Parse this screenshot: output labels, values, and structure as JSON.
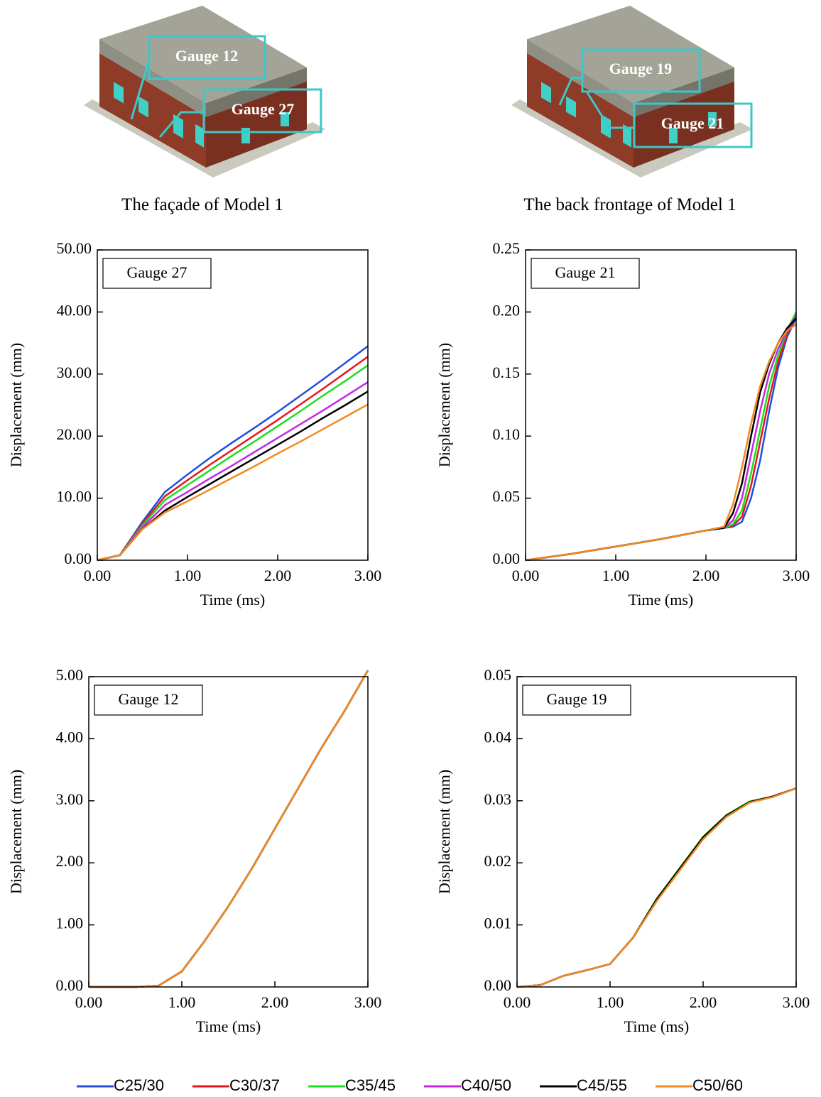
{
  "models": [
    {
      "caption": "The façade of Model 1",
      "gauges": [
        "Gauge 12",
        "Gauge 27"
      ]
    },
    {
      "caption": "The back frontage of Model 1",
      "gauges": [
        "Gauge 19",
        "Gauge 21"
      ]
    }
  ],
  "chart_data": [
    {
      "type": "line",
      "annotation": "Gauge 27",
      "xlabel": "Time (ms)",
      "ylabel": "Displacement (mm)",
      "x": [
        0,
        0.25,
        0.5,
        0.75,
        1,
        1.25,
        1.5,
        1.75,
        2,
        2.25,
        2.5,
        2.75,
        3
      ],
      "xlim": [
        0,
        3
      ],
      "xticks": [
        {
          "value": 0,
          "label": "0.00"
        },
        {
          "value": 1,
          "label": "1.00"
        },
        {
          "value": 2,
          "label": "2.00"
        },
        {
          "value": 3,
          "label": "3.00"
        }
      ],
      "ylim": [
        0,
        50
      ],
      "yticks": [
        {
          "value": 0,
          "label": "0.00"
        },
        {
          "value": 10,
          "label": "10.00"
        },
        {
          "value": 20,
          "label": "20.00"
        },
        {
          "value": 30,
          "label": "30.00"
        },
        {
          "value": 40,
          "label": "40.00"
        },
        {
          "value": 50,
          "label": "50.00"
        }
      ],
      "series": [
        {
          "name": "C25/30",
          "color": "#1f4fe0",
          "values": [
            0,
            0.8,
            6.2,
            11.0,
            13.8,
            16.5,
            19.0,
            21.4,
            23.9,
            26.5,
            29.1,
            31.8,
            34.5
          ]
        },
        {
          "name": "C30/37",
          "color": "#e8161b",
          "values": [
            0,
            0.8,
            5.9,
            10.3,
            12.9,
            15.4,
            17.8,
            20.2,
            22.6,
            25.1,
            27.6,
            30.2,
            32.8
          ]
        },
        {
          "name": "C35/45",
          "color": "#19e01e",
          "values": [
            0,
            0.8,
            5.6,
            9.7,
            12.1,
            14.5,
            16.9,
            19.2,
            21.6,
            24.0,
            26.5,
            28.9,
            31.4
          ]
        },
        {
          "name": "C40/50",
          "color": "#c02be0",
          "values": [
            0,
            0.8,
            5.3,
            8.9,
            11.0,
            13.2,
            15.3,
            17.5,
            19.7,
            21.9,
            24.1,
            26.4,
            28.7
          ]
        },
        {
          "name": "C45/55",
          "color": "#000000",
          "values": [
            0,
            0.8,
            5.0,
            8.0,
            10.2,
            12.3,
            14.4,
            16.5,
            18.6,
            20.7,
            22.9,
            25.0,
            27.2
          ]
        },
        {
          "name": "C50/60",
          "color": "#f08a24",
          "values": [
            0,
            0.8,
            5.0,
            7.7,
            9.5,
            11.4,
            13.3,
            15.2,
            17.2,
            19.1,
            21.1,
            23.1,
            25.1
          ]
        }
      ]
    },
    {
      "type": "line",
      "annotation": "Gauge 21",
      "xlabel": "Time (ms)",
      "ylabel": "Displacement (mm)",
      "x": [
        0,
        0.5,
        1,
        1.5,
        2,
        2.2,
        2.3,
        2.4,
        2.5,
        2.6,
        2.7,
        2.8,
        2.9,
        3
      ],
      "xlim": [
        0,
        3
      ],
      "xticks": [
        {
          "value": 0,
          "label": "0.00"
        },
        {
          "value": 1,
          "label": "1.00"
        },
        {
          "value": 2,
          "label": "2.00"
        },
        {
          "value": 3,
          "label": "3.00"
        }
      ],
      "ylim": [
        0,
        0.25
      ],
      "yticks": [
        {
          "value": 0,
          "label": "0.00"
        },
        0.05,
        {
          "value": 0.1,
          "label": "0.10"
        },
        0.15,
        {
          "value": 0.2,
          "label": "0.20"
        },
        0.25
      ],
      "series": [
        {
          "name": "C25/30",
          "color": "#1f4fe0",
          "values": [
            0,
            0.005,
            0.011,
            0.017,
            0.024,
            0.026,
            0.027,
            0.031,
            0.05,
            0.08,
            0.12,
            0.155,
            0.18,
            0.195
          ]
        },
        {
          "name": "C30/37",
          "color": "#e8161b",
          "values": [
            0,
            0.005,
            0.011,
            0.017,
            0.024,
            0.026,
            0.028,
            0.035,
            0.06,
            0.095,
            0.13,
            0.16,
            0.182,
            0.198
          ]
        },
        {
          "name": "C35/45",
          "color": "#19e01e",
          "values": [
            0,
            0.005,
            0.011,
            0.017,
            0.024,
            0.026,
            0.029,
            0.04,
            0.07,
            0.105,
            0.14,
            0.165,
            0.185,
            0.2
          ]
        },
        {
          "name": "C40/50",
          "color": "#c02be0",
          "values": [
            0,
            0.005,
            0.011,
            0.017,
            0.024,
            0.026,
            0.032,
            0.05,
            0.085,
            0.12,
            0.15,
            0.17,
            0.185,
            0.197
          ]
        },
        {
          "name": "C45/55",
          "color": "#000000",
          "values": [
            0,
            0.005,
            0.011,
            0.017,
            0.024,
            0.026,
            0.038,
            0.062,
            0.1,
            0.135,
            0.158,
            0.175,
            0.187,
            0.195
          ]
        },
        {
          "name": "C50/60",
          "color": "#f08a24",
          "values": [
            0,
            0.005,
            0.011,
            0.017,
            0.024,
            0.027,
            0.045,
            0.075,
            0.11,
            0.14,
            0.16,
            0.175,
            0.185,
            0.19
          ]
        }
      ]
    },
    {
      "type": "line",
      "annotation": "Gauge 12",
      "xlabel": "Time (ms)",
      "ylabel": "Displacement (mm)",
      "x": [
        0,
        0.25,
        0.5,
        0.75,
        1,
        1.25,
        1.5,
        1.75,
        2,
        2.25,
        2.5,
        2.75,
        3
      ],
      "xlim": [
        0,
        3
      ],
      "xticks": [
        {
          "value": 0,
          "label": "0.00"
        },
        {
          "value": 1,
          "label": "1.00"
        },
        {
          "value": 2,
          "label": "2.00"
        },
        {
          "value": 3,
          "label": "3.00"
        }
      ],
      "ylim": [
        0,
        5
      ],
      "yticks": [
        {
          "value": 0,
          "label": "0.00"
        },
        {
          "value": 1,
          "label": "1.00"
        },
        {
          "value": 2,
          "label": "2.00"
        },
        {
          "value": 3,
          "label": "3.00"
        },
        {
          "value": 4,
          "label": "4.00"
        },
        {
          "value": 5,
          "label": "5.00"
        }
      ],
      "series": [
        {
          "name": "C25/30",
          "color": "#1f4fe0",
          "values": [
            0,
            0,
            0,
            0.02,
            0.25,
            0.75,
            1.3,
            1.9,
            2.55,
            3.2,
            3.85,
            4.45,
            5.1
          ]
        },
        {
          "name": "C30/37",
          "color": "#e8161b",
          "values": [
            0,
            0,
            0,
            0.02,
            0.25,
            0.75,
            1.3,
            1.9,
            2.55,
            3.2,
            3.85,
            4.45,
            5.1
          ]
        },
        {
          "name": "C35/45",
          "color": "#19e01e",
          "values": [
            0,
            0,
            0,
            0.02,
            0.25,
            0.75,
            1.3,
            1.9,
            2.55,
            3.2,
            3.85,
            4.45,
            5.1
          ]
        },
        {
          "name": "C40/50",
          "color": "#c02be0",
          "values": [
            0,
            0,
            0,
            0.02,
            0.25,
            0.75,
            1.3,
            1.9,
            2.55,
            3.2,
            3.85,
            4.45,
            5.1
          ]
        },
        {
          "name": "C45/55",
          "color": "#000000",
          "values": [
            0,
            0,
            0,
            0.02,
            0.25,
            0.75,
            1.3,
            1.9,
            2.55,
            3.2,
            3.85,
            4.45,
            5.1
          ]
        },
        {
          "name": "C50/60",
          "color": "#f08a24",
          "values": [
            0,
            0,
            0,
            0.02,
            0.25,
            0.75,
            1.3,
            1.9,
            2.55,
            3.2,
            3.85,
            4.45,
            5.1
          ]
        }
      ]
    },
    {
      "type": "line",
      "annotation": "Gauge 19",
      "xlabel": "Time (ms)",
      "ylabel": "Displacement (mm)",
      "x": [
        0,
        0.25,
        0.5,
        0.75,
        1,
        1.25,
        1.5,
        1.75,
        2,
        2.25,
        2.5,
        2.75,
        3
      ],
      "xlim": [
        0,
        3
      ],
      "xticks": [
        {
          "value": 0,
          "label": "0.00"
        },
        {
          "value": 1,
          "label": "1.00"
        },
        {
          "value": 2,
          "label": "2.00"
        },
        {
          "value": 3,
          "label": "3.00"
        }
      ],
      "ylim": [
        0,
        0.05
      ],
      "yticks": [
        {
          "value": 0,
          "label": "0.00"
        },
        0.01,
        0.02,
        0.03,
        0.04,
        0.05
      ],
      "series": [
        {
          "name": "C25/30",
          "color": "#1f4fe0",
          "values": [
            0,
            0.0003,
            0.0018,
            0.0027,
            0.0037,
            0.008,
            0.014,
            0.019,
            0.024,
            0.0275,
            0.0298,
            0.0307,
            0.032
          ]
        },
        {
          "name": "C30/37",
          "color": "#e8161b",
          "values": [
            0,
            0.0003,
            0.0018,
            0.0027,
            0.0037,
            0.008,
            0.014,
            0.019,
            0.024,
            0.0275,
            0.0298,
            0.0307,
            0.032
          ]
        },
        {
          "name": "C35/45",
          "color": "#19e01e",
          "values": [
            0,
            0.0003,
            0.0018,
            0.0027,
            0.0037,
            0.008,
            0.0142,
            0.0192,
            0.0242,
            0.0277,
            0.0299,
            0.0307,
            0.032
          ]
        },
        {
          "name": "C40/50",
          "color": "#c02be0",
          "values": [
            0,
            0.0003,
            0.0018,
            0.0027,
            0.0037,
            0.008,
            0.014,
            0.019,
            0.024,
            0.0275,
            0.0298,
            0.0307,
            0.032
          ]
        },
        {
          "name": "C45/55",
          "color": "#000000",
          "values": [
            0,
            0.0003,
            0.0018,
            0.0027,
            0.0037,
            0.008,
            0.0141,
            0.0191,
            0.0241,
            0.0276,
            0.0298,
            0.0307,
            0.032
          ]
        },
        {
          "name": "C50/60",
          "color": "#f08a24",
          "values": [
            0,
            0.0003,
            0.0018,
            0.0027,
            0.0037,
            0.008,
            0.0138,
            0.0188,
            0.0238,
            0.0274,
            0.0297,
            0.0306,
            0.032
          ]
        }
      ]
    }
  ]
}
